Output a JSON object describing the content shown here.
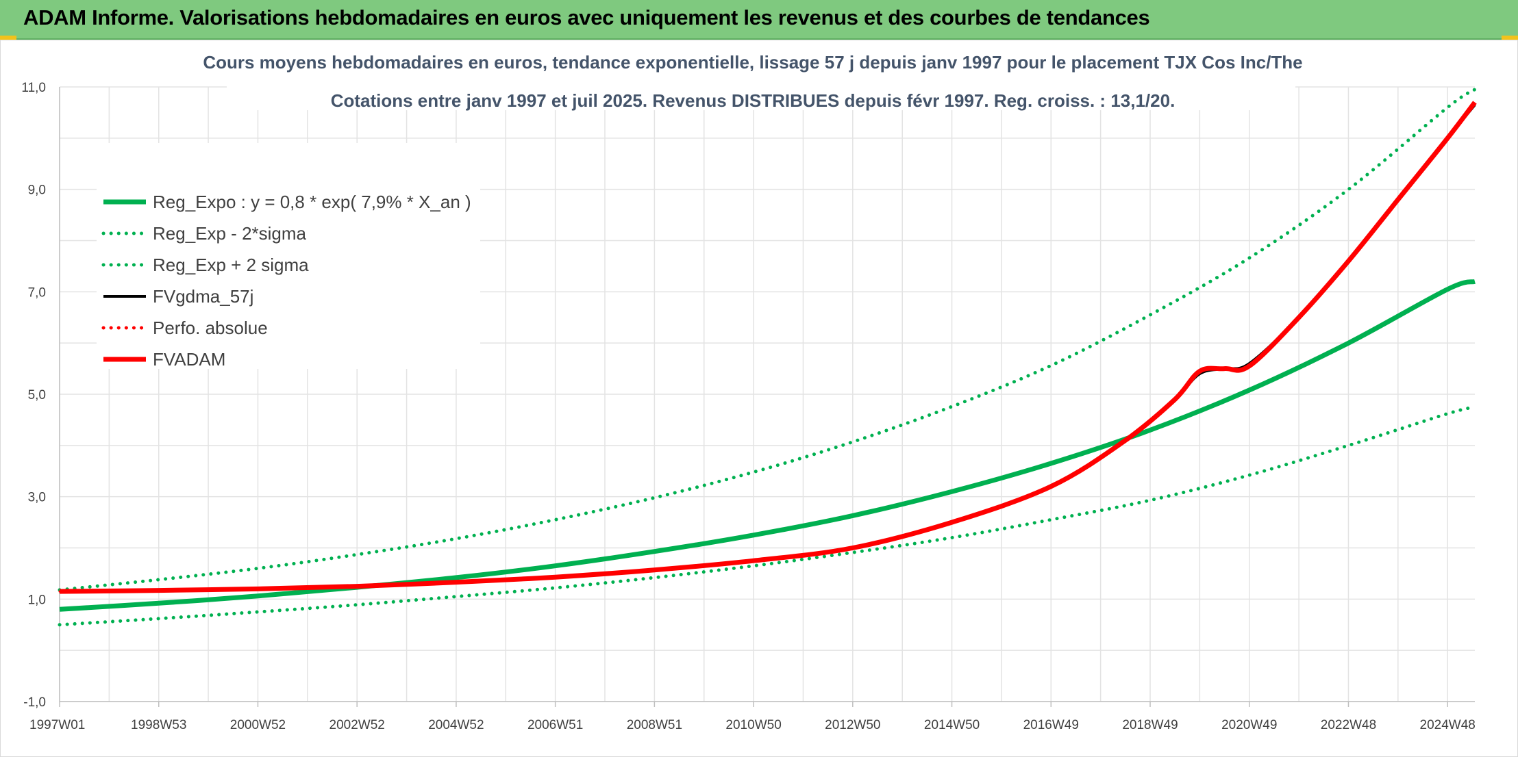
{
  "banner": {
    "title": "ADAM Informe. Valorisations hebdomadaires en euros avec uniquement les revenus et des courbes de tendances",
    "background": "#7fc97f"
  },
  "chart_data": {
    "type": "line",
    "title_line1": "Cours moyens hebdomadaires en euros, tendance exponentielle, lissage 57 j depuis janv 1997 pour le placement TJX Cos Inc/The",
    "title_line2": "Cotations entre janv 1997 et juil 2025. Revenus DISTRIBUES depuis févr 1997. Reg. croiss. : 13,1/20.",
    "xlabel": "",
    "ylabel": "",
    "x_range": [
      1997.0,
      2025.55
    ],
    "ylim": [
      -1,
      11
    ],
    "y_ticks": [
      "-1,0",
      "1,0",
      "3,0",
      "5,0",
      "7,0",
      "9,0",
      "11,0"
    ],
    "y_tick_values": [
      -1,
      1,
      3,
      5,
      7,
      9,
      11
    ],
    "x_ticks": [
      {
        "label": "1997W01",
        "year": 1997.0
      },
      {
        "label": "1998W53",
        "year": 1999.0
      },
      {
        "label": "2000W52",
        "year": 2001.0
      },
      {
        "label": "2002W52",
        "year": 2003.0
      },
      {
        "label": "2004W52",
        "year": 2005.0
      },
      {
        "label": "2006W51",
        "year": 2007.0
      },
      {
        "label": "2008W51",
        "year": 2009.0
      },
      {
        "label": "2010W50",
        "year": 2011.0
      },
      {
        "label": "2012W50",
        "year": 2013.0
      },
      {
        "label": "2014W50",
        "year": 2015.0
      },
      {
        "label": "2016W49",
        "year": 2017.0
      },
      {
        "label": "2018W49",
        "year": 2019.0
      },
      {
        "label": "2020W49",
        "year": 2021.0
      },
      {
        "label": "2022W48",
        "year": 2023.0
      },
      {
        "label": "2024W48",
        "year": 2025.0
      }
    ],
    "grid": true,
    "legend_position": "top-left",
    "series": [
      {
        "name": "Reg_Expo : y = 0,8 * exp( 7,9% *  X_an )",
        "style": "solid-thick",
        "color": "#00b050",
        "x": [
          1997,
          1999,
          2001,
          2003,
          2005,
          2007,
          2009,
          2011,
          2013,
          2015,
          2017,
          2019,
          2021,
          2023,
          2025,
          2025.55
        ],
        "y": [
          0.8,
          0.92,
          1.06,
          1.23,
          1.42,
          1.65,
          1.93,
          2.25,
          2.63,
          3.1,
          3.65,
          4.3,
          5.08,
          6.0,
          7.05,
          7.2
        ]
      },
      {
        "name": "Reg_Exp - 2*sigma",
        "style": "dotted",
        "color": "#00b050",
        "x": [
          1997,
          1999,
          2001,
          2003,
          2005,
          2007,
          2009,
          2011,
          2013,
          2015,
          2017,
          2019,
          2021,
          2023,
          2025,
          2025.55
        ],
        "y": [
          0.5,
          0.62,
          0.75,
          0.89,
          1.05,
          1.22,
          1.42,
          1.65,
          1.91,
          2.2,
          2.55,
          2.93,
          3.42,
          4.0,
          4.62,
          4.75
        ]
      },
      {
        "name": "Reg_Exp + 2 sigma",
        "style": "dotted",
        "color": "#00b050",
        "x": [
          1997,
          1999,
          2001,
          2003,
          2005,
          2007,
          2009,
          2011,
          2013,
          2015,
          2017,
          2019,
          2021,
          2023,
          2025,
          2025.55
        ],
        "y": [
          1.18,
          1.38,
          1.6,
          1.87,
          2.18,
          2.55,
          2.98,
          3.48,
          4.07,
          4.76,
          5.56,
          6.55,
          7.66,
          9.0,
          10.6,
          10.95
        ]
      },
      {
        "name": "FVgdma_57j",
        "style": "solid",
        "color": "#000000",
        "x": [
          1997,
          1999,
          2001,
          2003,
          2005,
          2007,
          2009,
          2011,
          2013,
          2015,
          2017,
          2018.5,
          2019.5,
          2020.0,
          2020.5,
          2021.0,
          2022.0,
          2023.0,
          2024.0,
          2025.0,
          2025.55
        ],
        "y": [
          1.15,
          1.17,
          1.2,
          1.25,
          1.33,
          1.43,
          1.57,
          1.75,
          2.0,
          2.5,
          3.2,
          4.1,
          4.9,
          5.4,
          5.5,
          5.6,
          6.5,
          7.6,
          8.8,
          10.0,
          10.65
        ]
      },
      {
        "name": "Perfo. absolue",
        "style": "dotted",
        "color": "#ff0000",
        "x": [
          1997,
          1999,
          2001,
          2003,
          2005,
          2007,
          2009,
          2011,
          2013,
          2015,
          2017,
          2018.5,
          2019.5,
          2020.0,
          2020.5,
          2021.0,
          2022.0,
          2023.0,
          2024.0,
          2025.0,
          2025.55
        ],
        "y": [
          1.15,
          1.17,
          1.2,
          1.25,
          1.33,
          1.43,
          1.57,
          1.75,
          2.0,
          2.5,
          3.2,
          4.1,
          4.9,
          5.45,
          5.5,
          5.55,
          6.5,
          7.6,
          8.8,
          10.0,
          10.7
        ]
      },
      {
        "name": "FVADAM",
        "style": "solid-thick",
        "color": "#ff0000",
        "x": [
          1997,
          1999,
          2001,
          2003,
          2005,
          2007,
          2009,
          2011,
          2013,
          2015,
          2017,
          2018.5,
          2019.5,
          2020.0,
          2020.5,
          2021.0,
          2022.0,
          2023.0,
          2024.0,
          2025.0,
          2025.55
        ],
        "y": [
          1.15,
          1.17,
          1.2,
          1.25,
          1.33,
          1.43,
          1.57,
          1.75,
          2.0,
          2.5,
          3.2,
          4.1,
          4.9,
          5.45,
          5.5,
          5.55,
          6.5,
          7.6,
          8.8,
          10.0,
          10.7
        ]
      }
    ]
  }
}
